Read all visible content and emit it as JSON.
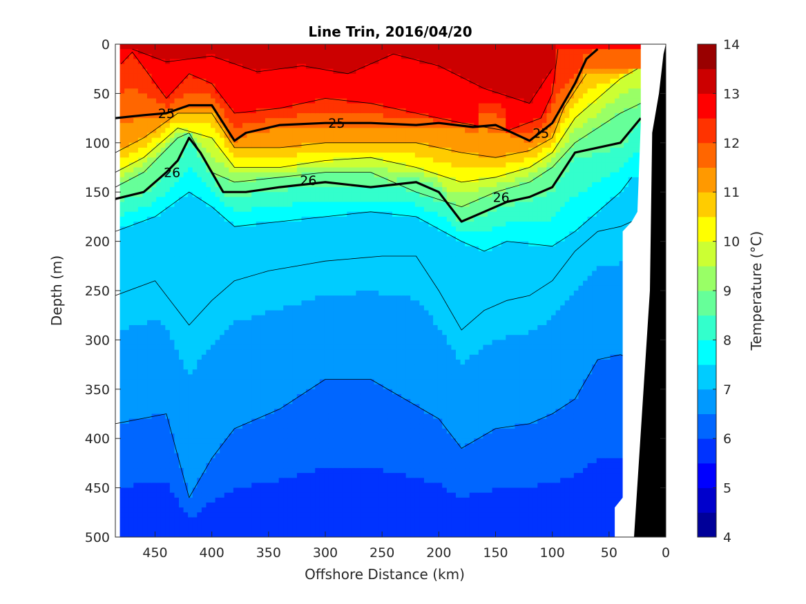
{
  "chart_data": {
    "type": "heatmap",
    "title": "Line Trin, 2016/04/20",
    "xlabel": "Offshore Distance (km)",
    "ylabel": "Depth (m)",
    "xlim": [
      485,
      0
    ],
    "ylim": [
      0,
      500
    ],
    "x_ticks": [
      450,
      400,
      350,
      300,
      250,
      200,
      150,
      100,
      50,
      0
    ],
    "y_ticks": [
      0,
      50,
      100,
      150,
      200,
      250,
      300,
      350,
      400,
      450,
      500
    ],
    "colorbar": {
      "label": "Temperature (°C)",
      "range": [
        4,
        14
      ],
      "ticks": [
        4,
        5,
        6,
        7,
        8,
        9,
        10,
        11,
        12,
        13,
        14
      ],
      "step": 0.5
    },
    "isotherms": [
      {
        "temp": 13,
        "x": [
          470,
          440,
          400,
          360,
          320,
          280,
          240,
          200,
          160,
          120,
          100
        ],
        "depth": [
          5,
          18,
          12,
          28,
          22,
          30,
          10,
          22,
          45,
          60,
          25
        ]
      },
      {
        "temp": 12.5,
        "x": [
          480,
          470,
          440,
          420,
          400,
          380,
          340,
          300,
          260,
          220,
          180,
          140,
          110,
          100,
          95
        ],
        "depth": [
          20,
          8,
          55,
          30,
          40,
          70,
          65,
          55,
          60,
          70,
          80,
          88,
          75,
          50,
          5
        ]
      },
      {
        "temp": 11,
        "x": [
          485,
          460,
          430,
          400,
          380,
          340,
          300,
          260,
          220,
          180,
          150,
          120,
          100,
          90,
          70
        ],
        "depth": [
          110,
          95,
          70,
          70,
          105,
          105,
          100,
          100,
          100,
          110,
          115,
          108,
          95,
          65,
          30
        ]
      },
      {
        "temp": 10,
        "x": [
          485,
          460,
          430,
          400,
          380,
          340,
          300,
          260,
          220,
          180,
          150,
          120,
          100,
          80,
          60,
          40,
          25
        ],
        "depth": [
          130,
          115,
          85,
          95,
          125,
          125,
          118,
          115,
          125,
          140,
          135,
          125,
          110,
          75,
          55,
          35,
          25
        ]
      },
      {
        "temp": 9,
        "x": [
          485,
          460,
          430,
          420,
          400,
          380,
          340,
          300,
          260,
          220,
          180,
          150,
          120,
          100,
          80,
          60,
          40,
          22
        ],
        "depth": [
          145,
          130,
          95,
          90,
          130,
          140,
          135,
          130,
          130,
          150,
          165,
          150,
          140,
          125,
          100,
          85,
          70,
          60
        ]
      },
      {
        "temp": 7.5,
        "x": [
          485,
          450,
          420,
          400,
          380,
          340,
          300,
          260,
          220,
          180,
          160,
          140,
          100,
          80,
          60,
          40,
          30
        ],
        "depth": [
          190,
          175,
          150,
          165,
          185,
          180,
          175,
          170,
          175,
          200,
          210,
          200,
          205,
          190,
          170,
          150,
          135
        ]
      },
      {
        "temp": 7.2,
        "x": [
          485,
          450,
          420,
          400,
          380,
          350,
          300,
          250,
          220,
          200,
          180,
          160,
          140,
          120,
          100,
          80,
          60,
          40,
          30
        ],
        "depth": [
          255,
          240,
          285,
          260,
          240,
          230,
          220,
          215,
          215,
          250,
          290,
          270,
          260,
          255,
          240,
          210,
          190,
          185,
          180
        ]
      },
      {
        "temp": 6.5,
        "x": [
          485,
          440,
          420,
          400,
          380,
          340,
          300,
          260,
          230,
          200,
          180,
          150,
          120,
          100,
          80,
          60,
          40,
          30
        ],
        "depth": [
          385,
          375,
          460,
          420,
          390,
          370,
          340,
          340,
          360,
          380,
          410,
          390,
          385,
          375,
          360,
          320,
          315,
          320
        ]
      }
    ],
    "labeled_isotherms": [
      {
        "label": "25",
        "x": [
          485,
          460,
          440,
          420,
          400,
          380,
          370,
          340,
          300,
          260,
          220,
          200,
          170,
          150,
          120,
          100,
          80,
          70,
          60
        ],
        "depth": [
          75,
          72,
          70,
          62,
          62,
          98,
          90,
          82,
          80,
          80,
          82,
          80,
          84,
          82,
          98,
          80,
          40,
          15,
          5
        ]
      },
      {
        "label": "26",
        "x": [
          485,
          460,
          440,
          430,
          420,
          410,
          390,
          370,
          340,
          300,
          260,
          220,
          200,
          180,
          160,
          140,
          120,
          100,
          80,
          60,
          40,
          22
        ],
        "depth": [
          157,
          150,
          130,
          118,
          95,
          110,
          150,
          150,
          145,
          140,
          145,
          140,
          150,
          180,
          170,
          160,
          155,
          145,
          110,
          105,
          100,
          75
        ]
      }
    ],
    "contour_labels": [
      {
        "text": "25",
        "x": 440,
        "depth": 70
      },
      {
        "text": "25",
        "x": 290,
        "depth": 80
      },
      {
        "text": "25",
        "x": 110,
        "depth": 90
      },
      {
        "text": "26",
        "x": 435,
        "depth": 130
      },
      {
        "text": "26",
        "x": 315,
        "depth": 138
      },
      {
        "text": "26",
        "x": 145,
        "depth": 155
      }
    ]
  }
}
